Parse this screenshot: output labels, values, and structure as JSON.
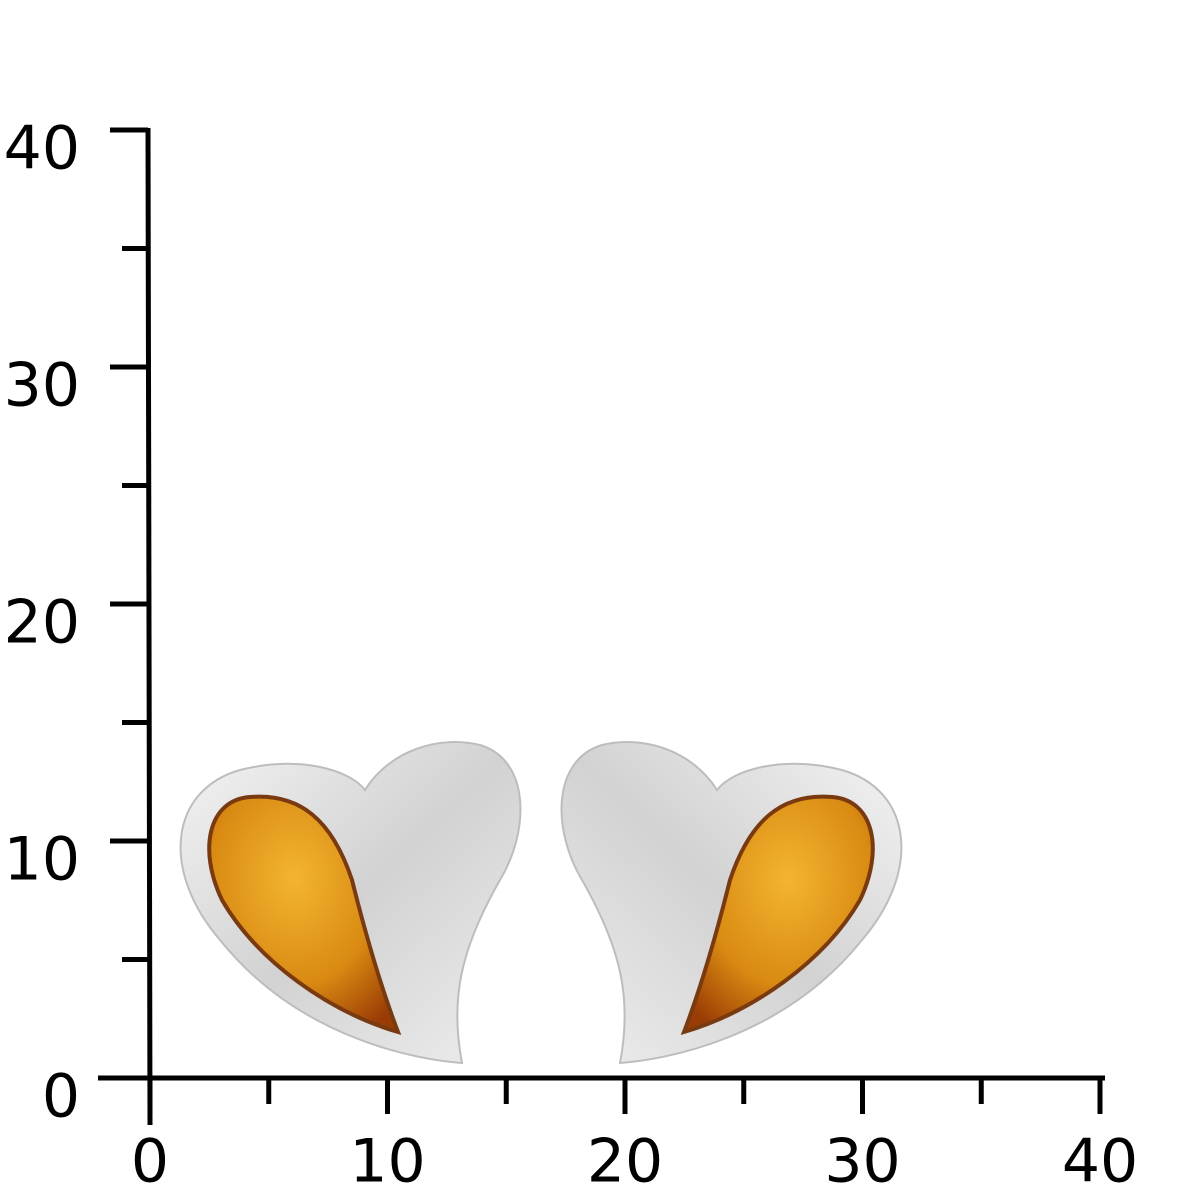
{
  "ruler": {
    "xlim": [
      0,
      40
    ],
    "ylim": [
      0,
      40
    ],
    "xticks": [
      0,
      10,
      20,
      30,
      40
    ],
    "yticks": [
      0,
      10,
      20,
      30,
      40
    ],
    "minor_ticks": [
      5,
      15,
      25,
      35
    ]
  }
}
